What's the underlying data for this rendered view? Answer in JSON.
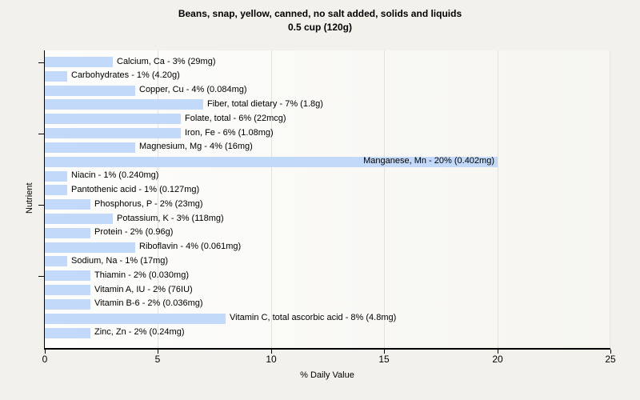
{
  "title": {
    "line1": "Beans, snap, yellow, canned, no salt added, solids and liquids",
    "line2": "0.5 cup (120g)"
  },
  "chart_data": {
    "type": "bar",
    "orientation": "horizontal",
    "title": "Beans, snap, yellow, canned, no salt added, solids and liquids",
    "subtitle": "0.5 cup (120g)",
    "xlabel": "% Daily Value",
    "ylabel": "Nutrient",
    "xlim": [
      0,
      25
    ],
    "x_ticks": [
      0,
      5,
      10,
      15,
      20,
      25
    ],
    "y_tick_rows": [
      0,
      5,
      10,
      15
    ],
    "grid": "vertical-major-gridlines",
    "legend": "none",
    "bar_color": "#c2d9f9",
    "categories": [
      "Calcium, Ca",
      "Carbohydrates",
      "Copper, Cu",
      "Fiber, total dietary",
      "Folate, total",
      "Iron, Fe",
      "Magnesium, Mg",
      "Manganese, Mn",
      "Niacin",
      "Pantothenic acid",
      "Phosphorus, P",
      "Potassium, K",
      "Protein",
      "Riboflavin",
      "Sodium, Na",
      "Thiamin",
      "Vitamin A, IU",
      "Vitamin B-6",
      "Vitamin C, total ascorbic acid",
      "Zinc, Zn"
    ],
    "values": [
      3,
      1,
      4,
      7,
      6,
      6,
      4,
      20,
      1,
      1,
      2,
      3,
      2,
      4,
      1,
      2,
      2,
      2,
      8,
      2
    ],
    "points": [
      {
        "name": "Calcium, Ca",
        "percent": 3,
        "amount": "29mg",
        "label": "Calcium, Ca - 3% (29mg)",
        "label_inside": false
      },
      {
        "name": "Carbohydrates",
        "percent": 1,
        "amount": "4.20g",
        "label": "Carbohydrates - 1% (4.20g)",
        "label_inside": false
      },
      {
        "name": "Copper, Cu",
        "percent": 4,
        "amount": "0.084mg",
        "label": "Copper, Cu - 4% (0.084mg)",
        "label_inside": false
      },
      {
        "name": "Fiber, total dietary",
        "percent": 7,
        "amount": "1.8g",
        "label": "Fiber, total dietary - 7% (1.8g)",
        "label_inside": false
      },
      {
        "name": "Folate, total",
        "percent": 6,
        "amount": "22mcg",
        "label": "Folate, total - 6% (22mcg)",
        "label_inside": false
      },
      {
        "name": "Iron, Fe",
        "percent": 6,
        "amount": "1.08mg",
        "label": "Iron, Fe - 6% (1.08mg)",
        "label_inside": false
      },
      {
        "name": "Magnesium, Mg",
        "percent": 4,
        "amount": "16mg",
        "label": "Magnesium, Mg - 4% (16mg)",
        "label_inside": false
      },
      {
        "name": "Manganese, Mn",
        "percent": 20,
        "amount": "0.402mg",
        "label": "Manganese, Mn - 20% (0.402mg)",
        "label_inside": true
      },
      {
        "name": "Niacin",
        "percent": 1,
        "amount": "0.240mg",
        "label": "Niacin - 1% (0.240mg)",
        "label_inside": false
      },
      {
        "name": "Pantothenic acid",
        "percent": 1,
        "amount": "0.127mg",
        "label": "Pantothenic acid - 1% (0.127mg)",
        "label_inside": false
      },
      {
        "name": "Phosphorus, P",
        "percent": 2,
        "amount": "23mg",
        "label": "Phosphorus, P - 2% (23mg)",
        "label_inside": false
      },
      {
        "name": "Potassium, K",
        "percent": 3,
        "amount": "118mg",
        "label": "Potassium, K - 3% (118mg)",
        "label_inside": false
      },
      {
        "name": "Protein",
        "percent": 2,
        "amount": "0.96g",
        "label": "Protein - 2% (0.96g)",
        "label_inside": false
      },
      {
        "name": "Riboflavin",
        "percent": 4,
        "amount": "0.061mg",
        "label": "Riboflavin - 4% (0.061mg)",
        "label_inside": false
      },
      {
        "name": "Sodium, Na",
        "percent": 1,
        "amount": "17mg",
        "label": "Sodium, Na - 1% (17mg)",
        "label_inside": false
      },
      {
        "name": "Thiamin",
        "percent": 2,
        "amount": "0.030mg",
        "label": "Thiamin - 2% (0.030mg)",
        "label_inside": false
      },
      {
        "name": "Vitamin A, IU",
        "percent": 2,
        "amount": "76IU",
        "label": "Vitamin A, IU - 2% (76IU)",
        "label_inside": false
      },
      {
        "name": "Vitamin B-6",
        "percent": 2,
        "amount": "0.036mg",
        "label": "Vitamin B-6 - 2% (0.036mg)",
        "label_inside": false
      },
      {
        "name": "Vitamin C, total ascorbic acid",
        "percent": 8,
        "amount": "4.8mg",
        "label": "Vitamin C, total ascorbic acid - 8% (4.8mg)",
        "label_inside": false
      },
      {
        "name": "Zinc, Zn",
        "percent": 2,
        "amount": "0.24mg",
        "label": "Zinc, Zn - 2% (0.24mg)",
        "label_inside": false
      }
    ]
  },
  "colors": {
    "page_bg": "#f2f1ec",
    "plot_bg": "#fbfaf7",
    "gridline": "#e4e2dd",
    "axis": "#000000",
    "bar": "#c2d9f9",
    "text": "#000000"
  }
}
